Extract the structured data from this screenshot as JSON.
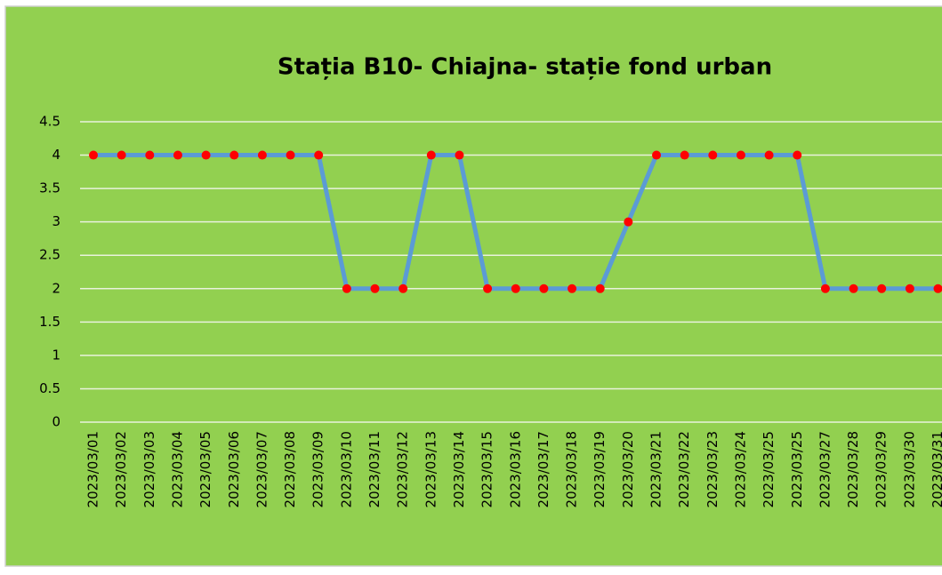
{
  "chart_data": {
    "type": "line",
    "title": "Stația B10- Chiajna- stație fond urban",
    "categories": [
      "2023/03/01",
      "2023/03/02",
      "2023/03/03",
      "2023/03/04",
      "2023/03/05",
      "2023/03/06",
      "2023/03/07",
      "2023/03/08",
      "2023/03/09",
      "2023/03/10",
      "2023/03/11",
      "2023/03/12",
      "2023/03/13",
      "2023/03/14",
      "2023/03/15",
      "2023/03/16",
      "2023/03/17",
      "2023/03/18",
      "2023/03/19",
      "2023/03/20",
      "2023/03/21",
      "2023/03/22",
      "2023/03/23",
      "2023/03/24",
      "2023/03/25",
      "2023/03/25",
      "2023/03/27",
      "2023/03/28",
      "2023/03/29",
      "2023/03/30",
      "2023/03/31"
    ],
    "values": [
      4,
      4,
      4,
      4,
      4,
      4,
      4,
      4,
      4,
      2,
      2,
      2,
      4,
      4,
      2,
      2,
      2,
      2,
      2,
      3,
      4,
      4,
      4,
      4,
      4,
      4,
      2,
      2,
      2,
      2,
      2
    ],
    "color": "#5b9bd5",
    "marker_color": "#ff0000",
    "ylim": [
      0,
      4.5
    ],
    "yticks": [
      0,
      0.5,
      1,
      1.5,
      2,
      2.5,
      3,
      3.5,
      4,
      4.5
    ],
    "grid": true
  }
}
